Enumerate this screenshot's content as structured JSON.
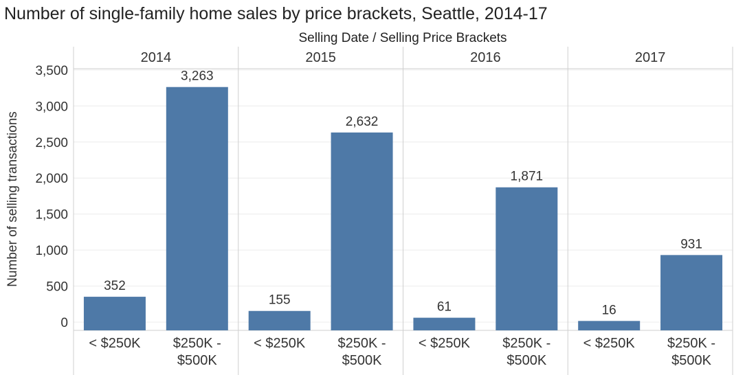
{
  "title": "Number of single-family home sales by price brackets, Seattle, 2014-17",
  "header_label": "Selling Date  /  Selling Price Brackets",
  "colors": {
    "bar": "#4e79a7",
    "grid": "#ececec",
    "divider": "#cfcfcf",
    "text": "#333333"
  },
  "chart_data": {
    "type": "bar",
    "ylabel": "Number of selling transactions",
    "ylim": [
      0,
      3600
    ],
    "yticks": [
      0,
      500,
      1000,
      1500,
      2000,
      2500,
      3000,
      3500
    ],
    "ytick_labels": [
      "0",
      "500",
      "1,000",
      "1,500",
      "2,000",
      "2,500",
      "3,000",
      "3,500"
    ],
    "grid": true,
    "categories": [
      "< $250K",
      "$250K - $500K"
    ],
    "category_label_lines": [
      [
        "< $250K"
      ],
      [
        "$250K -",
        "$500K"
      ]
    ],
    "groups": [
      {
        "name": "2014",
        "values": [
          352,
          3263
        ],
        "labels": [
          "352",
          "3,263"
        ]
      },
      {
        "name": "2015",
        "values": [
          155,
          2632
        ],
        "labels": [
          "155",
          "2,632"
        ]
      },
      {
        "name": "2016",
        "values": [
          61,
          1871
        ],
        "labels": [
          "61",
          "1,871"
        ]
      },
      {
        "name": "2017",
        "values": [
          16,
          931
        ],
        "labels": [
          "16",
          "931"
        ]
      }
    ]
  }
}
